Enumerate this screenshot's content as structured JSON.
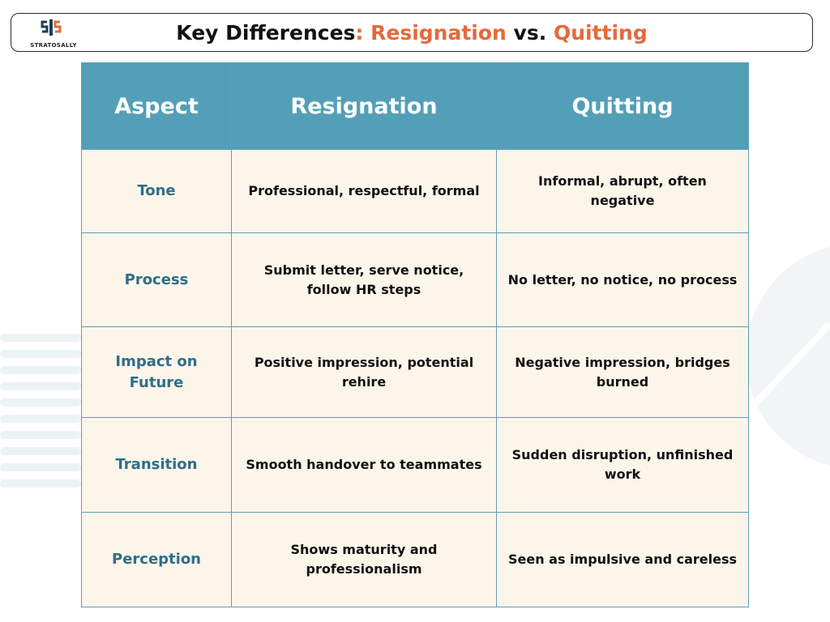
{
  "header": {
    "logo_text": "STRATOSALLY",
    "title_prefix": "Key Differences",
    "title_colon": ": ",
    "title_term1": "Resignation",
    "title_vs": " vs. ",
    "title_term2": "Quitting",
    "accent_color": "#e36a3c"
  },
  "table": {
    "header_color": "#549fb8",
    "cell_color": "#fcf5ea",
    "columns": [
      "Aspect",
      "Resignation",
      "Quitting"
    ],
    "rows": [
      {
        "aspect": "Tone",
        "resignation": "Professional, respectful, formal",
        "quitting": "Informal, abrupt, often negative"
      },
      {
        "aspect": "Process",
        "resignation": "Submit letter, serve notice, follow HR steps",
        "quitting": "No letter, no notice, no process"
      },
      {
        "aspect": "Impact on Future",
        "resignation": "Positive impression, potential rehire",
        "quitting": "Negative impression, bridges burned"
      },
      {
        "aspect": "Transition",
        "resignation": "Smooth handover to teammates",
        "quitting": "Sudden disruption, unfinished work"
      },
      {
        "aspect": "Perception",
        "resignation": "Shows maturity and professionalism",
        "quitting": "Seen as impulsive and careless"
      }
    ]
  }
}
